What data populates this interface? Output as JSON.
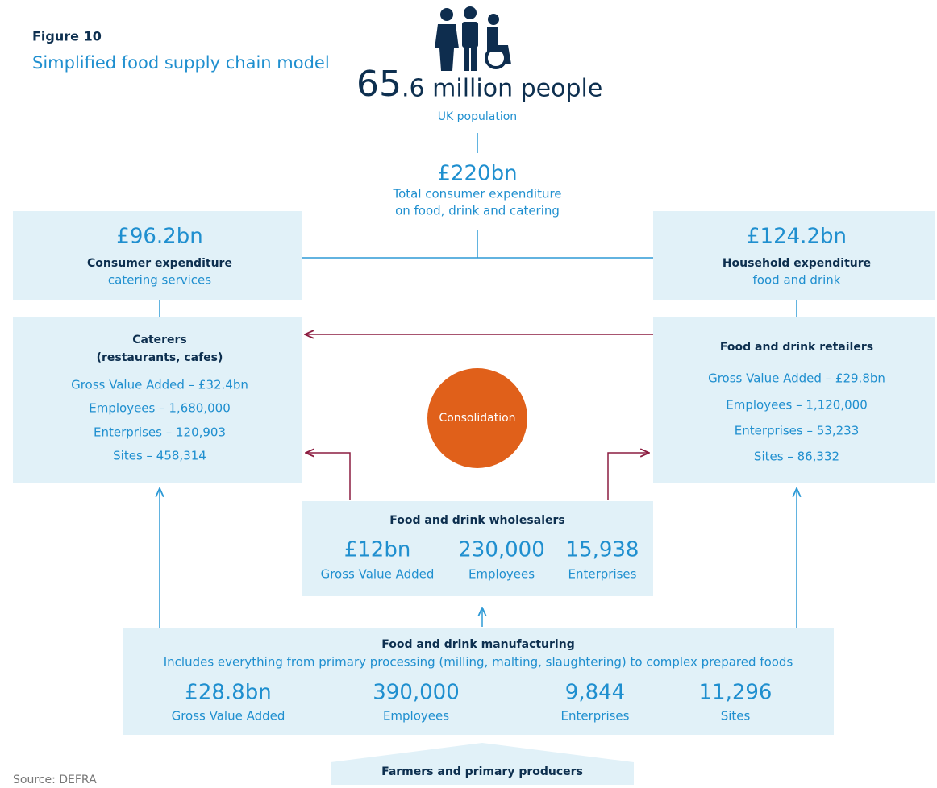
{
  "figure": {
    "label": "Figure 10",
    "title": "Simplified food supply chain model"
  },
  "population": {
    "number_major": "65",
    "number_minor": ".6 million people",
    "caption": "UK population"
  },
  "total": {
    "value": "£220bn",
    "lines": [
      "Total consumer expenditure",
      "on food, drink and catering"
    ]
  },
  "catering_expenditure": {
    "value": "£96.2bn",
    "title": "Consumer expenditure",
    "subtitle": "catering services"
  },
  "household_expenditure": {
    "value": "£124.2bn",
    "title": "Household expenditure",
    "subtitle": "food and drink"
  },
  "caterers": {
    "title": [
      "Caterers",
      "(restaurants, cafes)"
    ],
    "stats": [
      "Gross Value Added – £32.4bn",
      "Employees – 1,680,000",
      "Enterprises – 120,903",
      "Sites – 458,314"
    ]
  },
  "retailers": {
    "title": "Food and drink retailers",
    "stats": [
      "Gross Value Added – £29.8bn",
      "Employees – 1,120,000",
      "Enterprises – 53,233",
      "Sites – 86,332"
    ]
  },
  "consolidation": "Consolidation",
  "wholesalers": {
    "title": "Food and drink wholesalers",
    "stats": [
      {
        "value": "£12bn",
        "label": "Gross Value Added"
      },
      {
        "value": "230,000",
        "label": "Employees"
      },
      {
        "value": "15,938",
        "label": "Enterprises"
      }
    ]
  },
  "manufacturing": {
    "title": "Food and drink manufacturing",
    "subtitle": "Includes everything from primary processing (milling, malting, slaughtering) to complex prepared foods",
    "stats": [
      {
        "value": "£28.8bn",
        "label": "Gross Value Added"
      },
      {
        "value": "390,000",
        "label": "Employees"
      },
      {
        "value": "9,844",
        "label": "Enterprises"
      },
      {
        "value": "11,296",
        "label": "Sites"
      }
    ]
  },
  "farmers": "Farmers and primary producers",
  "source": "Source: DEFRA"
}
